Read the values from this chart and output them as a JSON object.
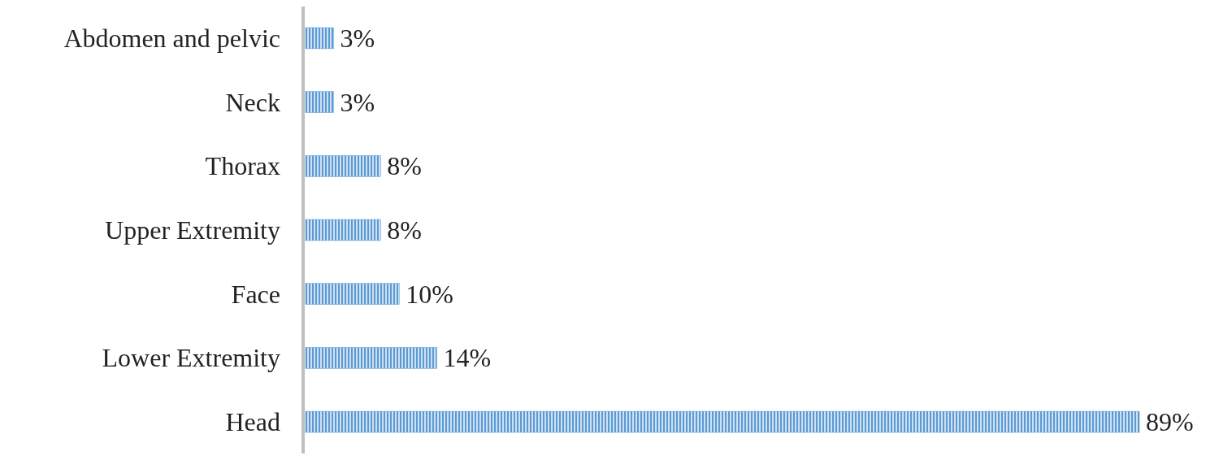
{
  "chart_data": {
    "type": "bar",
    "orientation": "horizontal",
    "categories": [
      "Abdomen and pelvic",
      "Neck",
      "Thorax",
      "Upper Extremity",
      "Face",
      "Lower Extremity",
      "Head"
    ],
    "values": [
      3,
      3,
      8,
      8,
      10,
      14,
      89
    ],
    "value_labels": [
      "3%",
      "3%",
      "8%",
      "8%",
      "10%",
      "14%",
      "89%"
    ],
    "color": "#5b9bd5"
  }
}
